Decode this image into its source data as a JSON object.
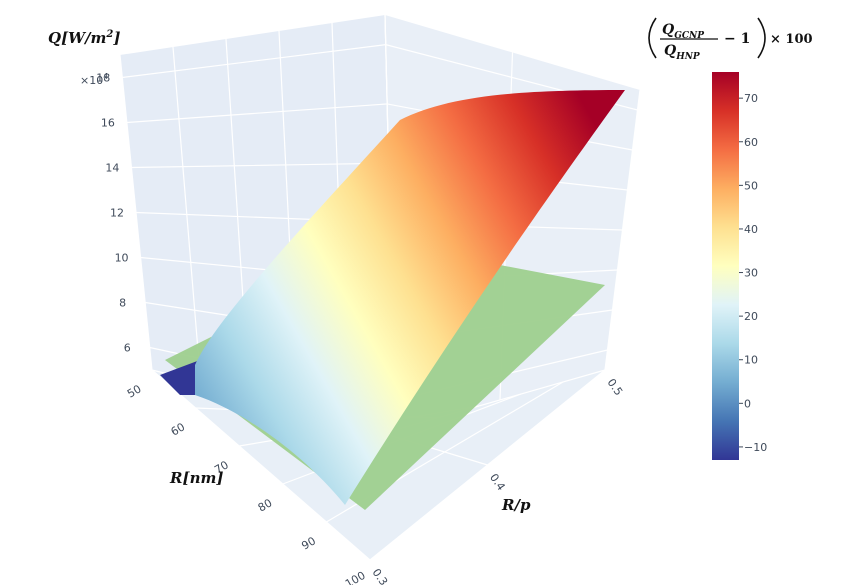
{
  "chart_data": {
    "type": "surface3d",
    "title": "",
    "axes": {
      "x": {
        "label": "R/p",
        "ticks": [
          "0.3",
          "0.4",
          "0.5"
        ],
        "range": [
          0.3,
          0.5
        ]
      },
      "y": {
        "label": "R[nm]",
        "ticks": [
          "50",
          "60",
          "70",
          "80",
          "90",
          "100"
        ],
        "range": [
          50,
          100
        ]
      },
      "z": {
        "label": "Q[W/m",
        "label_sup": "2",
        "label_end": "]",
        "multiplier": "×10",
        "multiplier_exp": "4",
        "ticks": [
          "6",
          "8",
          "10",
          "12",
          "14",
          "16",
          "18"
        ],
        "range": [
          5,
          19
        ]
      }
    },
    "surfaces": [
      {
        "name": "GCNP",
        "colorscale": "RdYlBu_r",
        "color_by": "percent_difference",
        "corners": {
          "r_p_0.3_R_100": 6.0,
          "r_p_0.3_R_50": 6.4,
          "r_p_0.5_R_50": 17.0,
          "r_p_0.5_R_100": 18.5
        }
      },
      {
        "name": "HNP",
        "color": "#9ecf8e",
        "corners": {
          "r_p_0.3_R_100": 5.2,
          "r_p_0.3_R_50": 6.8,
          "r_p_0.5_R_50": 8.2,
          "r_p_0.5_R_100": 9.6
        }
      }
    ],
    "colorbar": {
      "title_parts": {
        "num": "Q",
        "num_sub": "GCNP",
        "den": "Q",
        "den_sub": "HNP",
        "suffix": "− 1",
        "tail": "× 100"
      },
      "ticks": [
        "−10",
        "0",
        "10",
        "20",
        "30",
        "40",
        "50",
        "60",
        "70"
      ],
      "range": [
        -13,
        76
      ],
      "colors": [
        "#313695",
        "#4575b4",
        "#74add1",
        "#abd9e9",
        "#e0f3f8",
        "#ffffbf",
        "#fee090",
        "#fdae61",
        "#f46d43",
        "#d73027",
        "#a50026"
      ]
    }
  }
}
